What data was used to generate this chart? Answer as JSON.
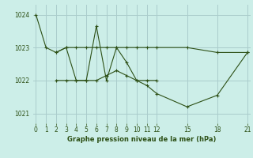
{
  "background_color": "#cceee8",
  "grid_color": "#aacccc",
  "line_color": "#2d5016",
  "title": "Graphe pression niveau de la mer (hPa)",
  "xlim": [
    -0.3,
    21.3
  ],
  "ylim": [
    1020.7,
    1024.3
  ],
  "yticks": [
    1021,
    1022,
    1023,
    1024
  ],
  "xticks": [
    0,
    1,
    2,
    3,
    4,
    5,
    6,
    7,
    8,
    9,
    10,
    11,
    12,
    15,
    18,
    21
  ],
  "series": [
    {
      "x": [
        0,
        1,
        2,
        3,
        4,
        5,
        6,
        7,
        8,
        9,
        10,
        11,
        12
      ],
      "y": [
        1024.0,
        1023.0,
        1022.85,
        1023.0,
        1022.0,
        1022.0,
        1023.65,
        1022.0,
        1023.0,
        1022.55,
        1022.0,
        1022.0,
        1022.0
      ]
    },
    {
      "x": [
        2,
        3,
        4,
        5,
        6,
        7,
        8,
        9,
        10,
        11,
        12,
        15,
        18,
        21
      ],
      "y": [
        1022.85,
        1023.0,
        1023.0,
        1023.0,
        1023.0,
        1023.0,
        1023.0,
        1023.0,
        1023.0,
        1023.0,
        1023.0,
        1023.0,
        1022.85,
        1022.85
      ]
    },
    {
      "x": [
        2,
        3,
        4,
        5,
        6,
        7,
        8,
        9,
        10,
        11,
        12,
        15,
        18,
        21
      ],
      "y": [
        1022.0,
        1022.0,
        1022.0,
        1022.0,
        1022.0,
        1022.15,
        1022.3,
        1022.15,
        1022.0,
        1021.85,
        1021.6,
        1021.2,
        1021.55,
        1022.85
      ]
    }
  ],
  "marker": "+"
}
